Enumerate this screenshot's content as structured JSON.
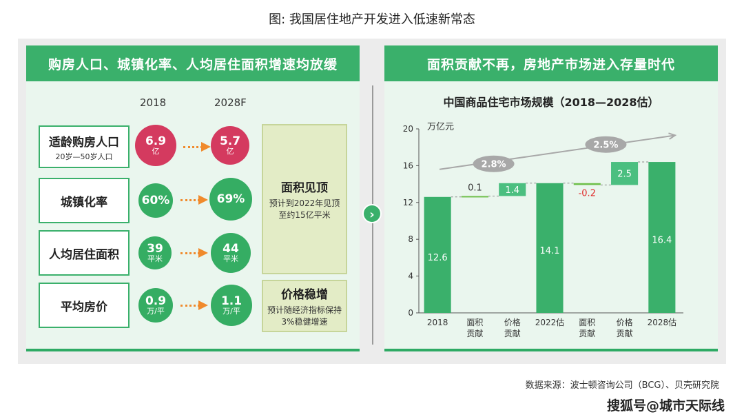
{
  "figure": {
    "title": "图: 我国居住地产开发进入低速新常态",
    "source": "数据来源：波士顿咨询公司（BCG）、贝壳研究院",
    "watermark": "搜狐号@城市天际线"
  },
  "left": {
    "header": "购房人口、城镇化率、人均居住面积增速均放缓",
    "year_from": "2018",
    "year_to": "2028F",
    "rows": [
      {
        "label": "适龄购房人口",
        "sublabel": "20岁—50岁人口",
        "from_value": "6.9",
        "from_unit": "亿",
        "to_value": "5.7",
        "to_unit": "亿",
        "color": "#d43a5f"
      },
      {
        "label": "城镇化率",
        "sublabel": "",
        "from_value": "60%",
        "from_unit": "",
        "to_value": "69%",
        "to_unit": "",
        "color": "#35ad63"
      },
      {
        "label": "人均居住面积",
        "sublabel": "",
        "from_value": "39",
        "from_unit": "平米",
        "to_value": "44",
        "to_unit": "平米",
        "color": "#35ad63"
      },
      {
        "label": "平均房价",
        "sublabel": "",
        "from_value": "0.9",
        "from_unit": "万/平",
        "to_value": "1.1",
        "to_unit": "万/平",
        "color": "#35ad63"
      }
    ],
    "notes": [
      {
        "title": "面积见顶",
        "desc": "预计到2022年见顶至约15亿平米"
      },
      {
        "title": "价格稳增",
        "desc": "预计随经济指标保持3%稳健增速"
      }
    ]
  },
  "right": {
    "header": "面积贡献不再，房地产市场进入存量时代"
  },
  "chart_data": {
    "type": "bar",
    "subtype": "waterfall",
    "title": "中国商品住宅市场规模（2018—2028估）",
    "ylabel": "万亿元",
    "ylim": [
      0,
      20
    ],
    "yticks": [
      0,
      4,
      8,
      12,
      16,
      20
    ],
    "categories": [
      "2018",
      "面积贡献",
      "价格贡献",
      "2022估",
      "面积贡献",
      "价格贡献",
      "2028估"
    ],
    "values": [
      12.6,
      0.1,
      1.4,
      14.1,
      -0.2,
      2.5,
      16.4
    ],
    "value_labels": [
      "12.6",
      "0.1",
      "1.4",
      "14.1",
      "-0.2",
      "2.5",
      "16.4"
    ],
    "bar_kinds": [
      "total",
      "delta",
      "delta",
      "total",
      "delta",
      "delta",
      "total"
    ],
    "growth_labels": [
      "2.8%",
      "2.5%"
    ],
    "colors": {
      "total": "#3ab06b",
      "price": "#4bbf80",
      "area": "#6fbf4a",
      "negative_label": "#e02a2a",
      "trend": "#a8a8a8",
      "badge": "#a8a8a8"
    },
    "legend": "none",
    "grid": false
  }
}
